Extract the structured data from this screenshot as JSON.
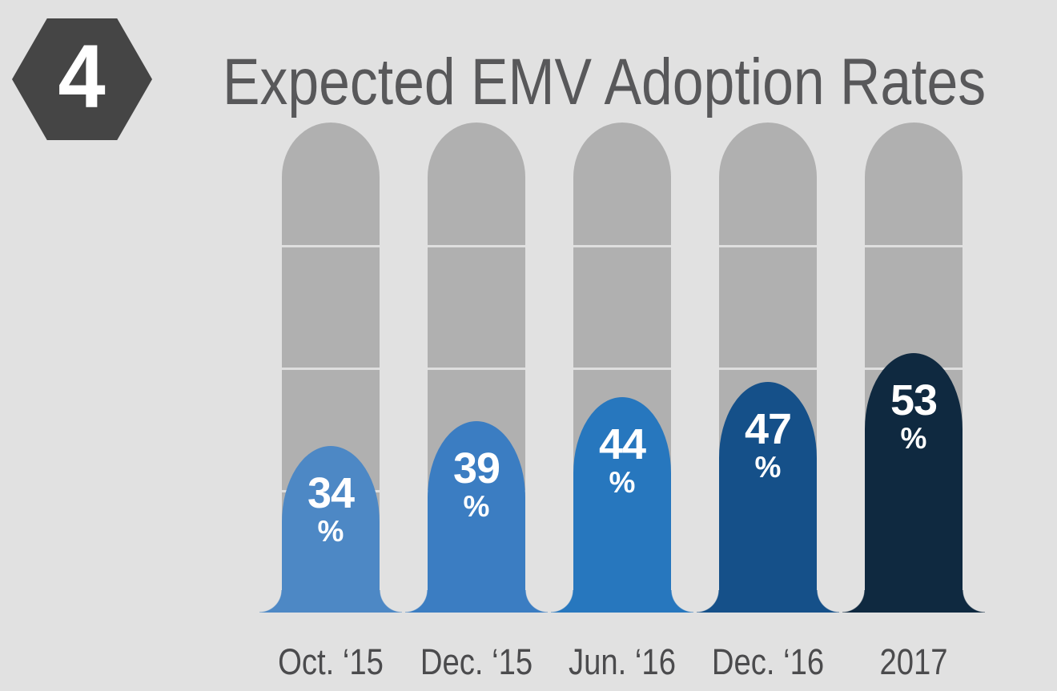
{
  "badge": {
    "number": "4"
  },
  "title": "Expected EMV Adoption Rates",
  "chart_data": {
    "type": "bar",
    "title": "Expected EMV Adoption Rates",
    "categories": [
      "Oct. ‘15",
      "Dec. ‘15",
      "Jun. ‘16",
      "Dec. ‘16",
      "2017"
    ],
    "values": [
      34,
      39,
      44,
      47,
      53
    ],
    "unit": "%",
    "ylim": [
      0,
      100
    ],
    "gridlines_percent": [
      25,
      50,
      75
    ],
    "legend": "none",
    "orientation": "vertical",
    "bar_colors": [
      "#4d88c5",
      "#3b7dc2",
      "#2777be",
      "#155089",
      "#0f2940"
    ],
    "track_color": "#b0b0b0",
    "gridline_color": "#dfdfdf",
    "background_color": "#e1e1e1",
    "title_color": "#58585a",
    "category_label_color": "#4b4b4d",
    "badge_color": "#454545"
  }
}
